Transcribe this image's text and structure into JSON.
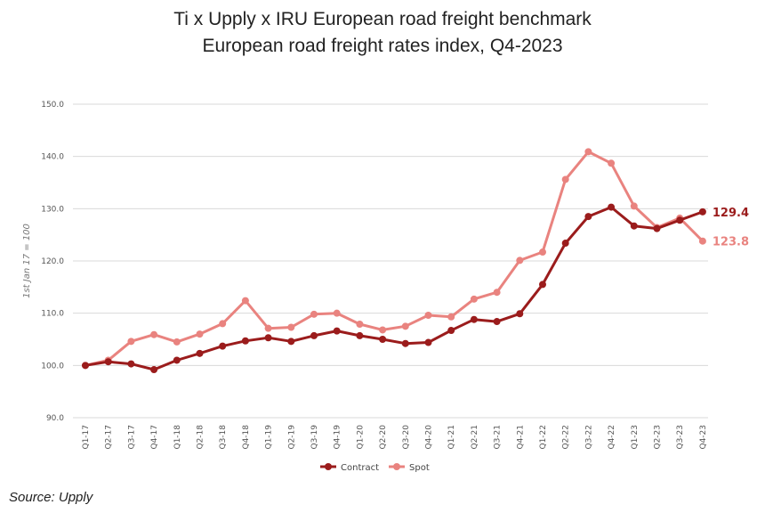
{
  "title": "Ti x Upply x IRU European road freight benchmark",
  "subtitle": "European road freight rates index, Q4-2023",
  "source": "Source: Upply",
  "chart_data": {
    "type": "line",
    "ylabel": "1st Jan 17 = 100",
    "ylim": [
      90,
      150
    ],
    "yticks": [
      "90.0",
      "100.0",
      "110.0",
      "120.0",
      "130.0",
      "140.0",
      "150.0"
    ],
    "grid": true,
    "legend_position": "bottom-center",
    "categories": [
      "Q1-17",
      "Q2-17",
      "Q3-17",
      "Q4-17",
      "Q1-18",
      "Q2-18",
      "Q3-18",
      "Q4-18",
      "Q1-19",
      "Q2-19",
      "Q3-19",
      "Q4-19",
      "Q1-20",
      "Q2-20",
      "Q3-20",
      "Q4-20",
      "Q1-21",
      "Q2-21",
      "Q3-21",
      "Q4-21",
      "Q1-22",
      "Q2-22",
      "Q3-22",
      "Q4-22",
      "Q1-23",
      "Q2-23",
      "Q3-23",
      "Q4-23"
    ],
    "series": [
      {
        "name": "Contract",
        "color": "#9b1c1c",
        "values": [
          100.0,
          100.7,
          100.3,
          99.2,
          101.0,
          102.3,
          103.7,
          104.7,
          105.3,
          104.6,
          105.7,
          106.6,
          105.7,
          105.0,
          104.2,
          104.4,
          106.7,
          108.8,
          108.4,
          109.9,
          115.5,
          123.4,
          128.5,
          130.3,
          126.7,
          126.2,
          127.8,
          129.4
        ],
        "end_label": "129.4"
      },
      {
        "name": "Spot",
        "color": "#e9837f",
        "values": [
          100.0,
          101.0,
          104.6,
          105.9,
          104.5,
          106.0,
          108.0,
          112.4,
          107.1,
          107.3,
          109.8,
          110.0,
          107.9,
          106.8,
          107.5,
          109.6,
          109.3,
          112.7,
          114.0,
          120.1,
          121.7,
          135.6,
          140.9,
          138.7,
          130.5,
          126.4,
          128.2,
          123.8
        ],
        "end_label": "123.8"
      }
    ]
  }
}
